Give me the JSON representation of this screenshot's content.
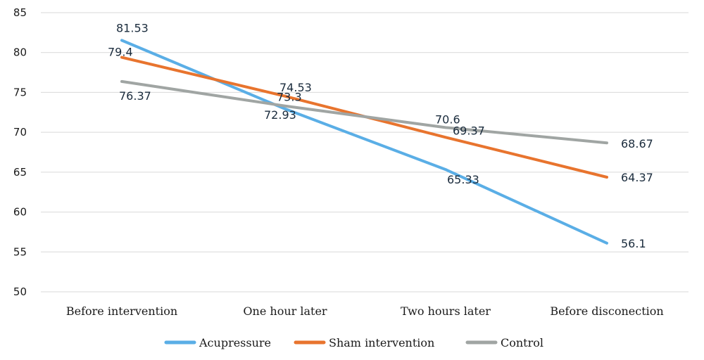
{
  "chart_data": {
    "type": "line",
    "categories": [
      "Before intervention",
      "One hour later",
      "Two hours later",
      "Before disconection"
    ],
    "ylim": [
      50,
      85
    ],
    "yticks": [
      50,
      55,
      60,
      65,
      70,
      75,
      80,
      85
    ],
    "grid": true,
    "legend_position": "bottom",
    "series": [
      {
        "name": "Acupressure",
        "color": "#5aaee6",
        "values": [
          81.53,
          72.93,
          65.33,
          56.1
        ],
        "labels": [
          "81.53",
          "72.93",
          "65.33",
          "56.1"
        ]
      },
      {
        "name": "Sham intervention",
        "color": "#e8742e",
        "values": [
          79.4,
          74.53,
          69.37,
          64.37
        ],
        "labels": [
          "79.4",
          "74.53",
          "69.37",
          "64.37"
        ]
      },
      {
        "name": "Control",
        "color": "#a0a5a3",
        "values": [
          76.37,
          73.3,
          70.6,
          68.67
        ],
        "labels": [
          "76.37",
          "73.3",
          "70.6",
          "68.67"
        ]
      }
    ]
  }
}
